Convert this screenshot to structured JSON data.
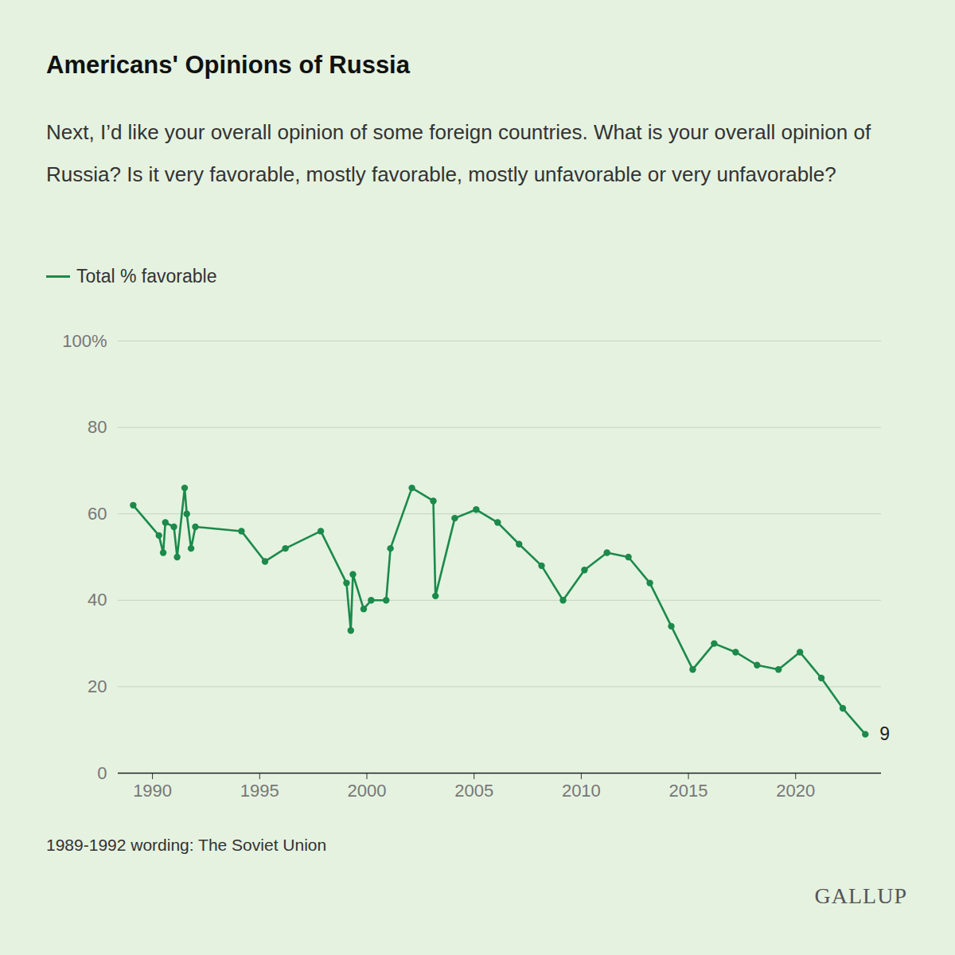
{
  "chart_data": {
    "type": "line",
    "title": "Americans' Opinions of Russia",
    "subtitle": "Next, I’d like your overall opinion of some foreign countries. What is your overall opinion of Russia? Is it very favorable, mostly favorable, mostly unfavorable or very unfavorable?",
    "caption": "1989-1992 wording: The Soviet Union",
    "source": "GALLUP",
    "x": [
      1989.1,
      1990.3,
      1990.5,
      1990.6,
      1991.0,
      1991.15,
      1991.5,
      1991.6,
      1991.8,
      1992.0,
      1994.15,
      1995.25,
      1996.2,
      1997.85,
      1999.05,
      1999.25,
      1999.35,
      1999.85,
      2000.2,
      2000.9,
      2001.1,
      2002.1,
      2003.1,
      2003.2,
      2004.1,
      2005.1,
      2006.1,
      2007.1,
      2008.15,
      2009.15,
      2010.15,
      2011.2,
      2012.2,
      2013.2,
      2014.2,
      2015.2,
      2016.2,
      2017.2,
      2018.2,
      2019.2,
      2020.2,
      2021.2,
      2022.2,
      2023.25
    ],
    "series": [
      {
        "name": "Total % favorable",
        "color": "#1b8a4b",
        "values": [
          62,
          55,
          51,
          58,
          57,
          50,
          66,
          60,
          52,
          57,
          56,
          49,
          52,
          56,
          44,
          33,
          46,
          38,
          40,
          40,
          52,
          66,
          63,
          41,
          59,
          61,
          58,
          53,
          48,
          40,
          47,
          51,
          50,
          44,
          34,
          24,
          30,
          28,
          25,
          24,
          28,
          22,
          15,
          9
        ]
      }
    ],
    "marker": "circle",
    "xlim": [
      1988.4,
      2024
    ],
    "xticks": [
      1990,
      1995,
      2000,
      2005,
      2010,
      2015,
      2020
    ],
    "ylim": [
      0,
      100
    ],
    "yticks": [
      0,
      20,
      40,
      60,
      80,
      {
        "value": 100,
        "label": "100%"
      }
    ],
    "grid": true,
    "legend": "top",
    "annotations": [
      {
        "text": "9",
        "x": 2023.25,
        "y": 9
      }
    ]
  }
}
